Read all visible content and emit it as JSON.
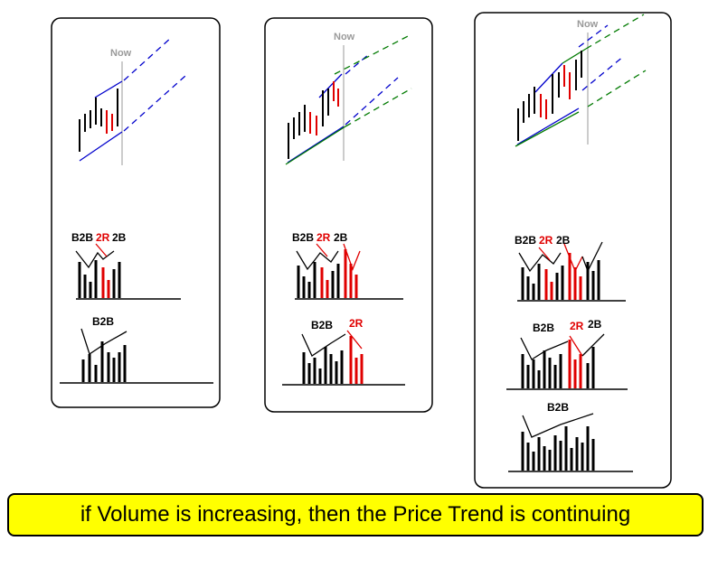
{
  "diagram": {
    "now_label": "Now",
    "label_b2b": "B2B",
    "label_2r": "2R",
    "label_2b": "2B",
    "caption": "if Volume is increasing, then the Price Trend is continuing"
  },
  "colors": {
    "bar": "#000000",
    "red": "#e00000",
    "blue": "#0000cc",
    "green": "#007a00",
    "now_line": "#9a9a9a",
    "caption_bg": "#ffff00"
  }
}
